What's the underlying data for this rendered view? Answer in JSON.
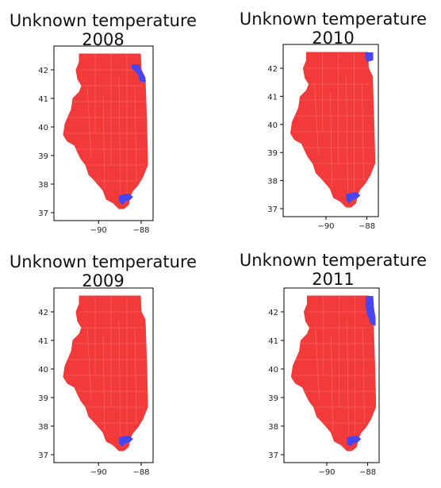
{
  "colors": {
    "state_fill": "#f23a3a",
    "county_line": "#ff8a8a",
    "highlight": "#4646f2",
    "axis": "#000000"
  },
  "panels": [
    {
      "title_line1": "Unknown temperature",
      "title_line2": "2008",
      "yticks": [
        "42",
        "41",
        "40",
        "39",
        "38",
        "37"
      ],
      "xticks": [
        "−90",
        "−88"
      ],
      "blue_regions": [
        "northeast-lakeshore",
        "south-tip"
      ]
    },
    {
      "title_line1": "Unknown temperature",
      "title_line2": "2010",
      "yticks": [
        "42",
        "41",
        "40",
        "39",
        "38",
        "37"
      ],
      "xticks": [
        "−90",
        "−88"
      ],
      "blue_regions": [
        "northeast-corner",
        "south-tip"
      ]
    },
    {
      "title_line1": "Unknown temperature",
      "title_line2": "2009",
      "yticks": [
        "42",
        "41",
        "40",
        "39",
        "38",
        "37"
      ],
      "xticks": [
        "−90",
        "−88"
      ],
      "blue_regions": [
        "south-tip"
      ]
    },
    {
      "title_line1": "Unknown temperature",
      "title_line2": "2011",
      "yticks": [
        "42",
        "41",
        "40",
        "39",
        "38",
        "37"
      ],
      "xticks": [
        "−90",
        "−88"
      ],
      "blue_regions": [
        "northeast-lakeshore-large",
        "south-tip"
      ]
    }
  ]
}
